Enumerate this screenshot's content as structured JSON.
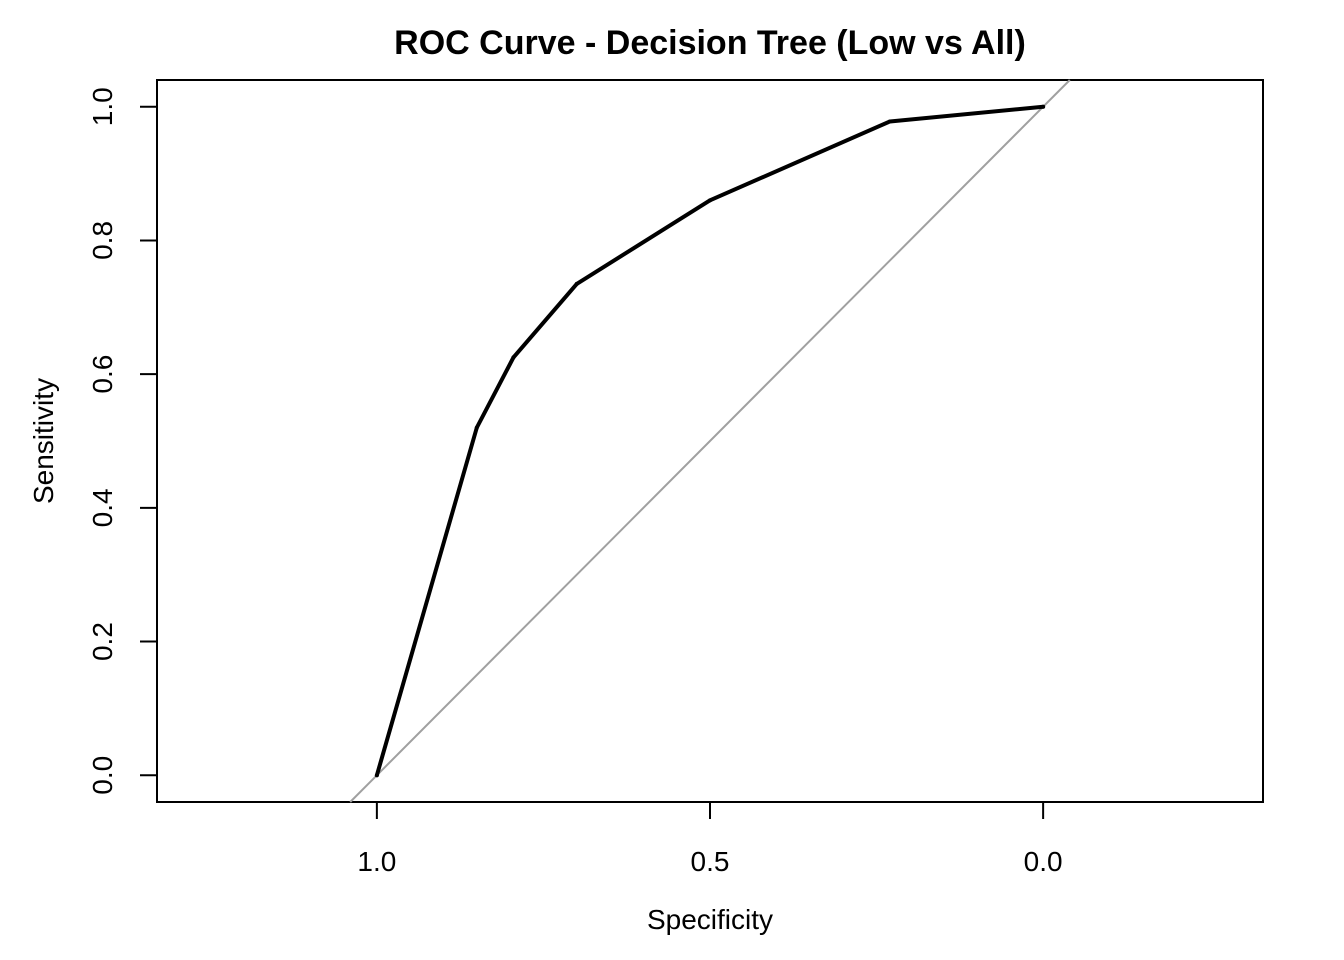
{
  "chart_data": {
    "type": "line",
    "title": "ROC Curve - Decision Tree (Low vs All)",
    "xlabel": "Specificity",
    "ylabel": "Sensitivity",
    "x_axis_reversed": true,
    "xlim": [
      1.33,
      -0.33
    ],
    "ylim": [
      -0.04,
      1.04
    ],
    "x_ticks": [
      1.0,
      0.5,
      0.0
    ],
    "x_tick_labels": [
      "1.0",
      "0.5",
      "0.0"
    ],
    "y_ticks": [
      0.0,
      0.2,
      0.4,
      0.6,
      0.8,
      1.0
    ],
    "y_tick_labels": [
      "0.0",
      "0.2",
      "0.4",
      "0.6",
      "0.8",
      "1.0"
    ],
    "grid": false,
    "legend": "none",
    "series": [
      {
        "color": "#000000",
        "specificity": [
          1.0,
          0.85,
          0.795,
          0.7,
          0.5,
          0.23,
          0.0
        ],
        "sensitivity": [
          0.0,
          0.52,
          0.625,
          0.735,
          0.86,
          0.978,
          1.0
        ]
      }
    ],
    "reference_line": {
      "color": "#a0a0a0",
      "specificity": [
        1.0,
        0.0
      ],
      "sensitivity": [
        0.0,
        1.0
      ]
    }
  }
}
